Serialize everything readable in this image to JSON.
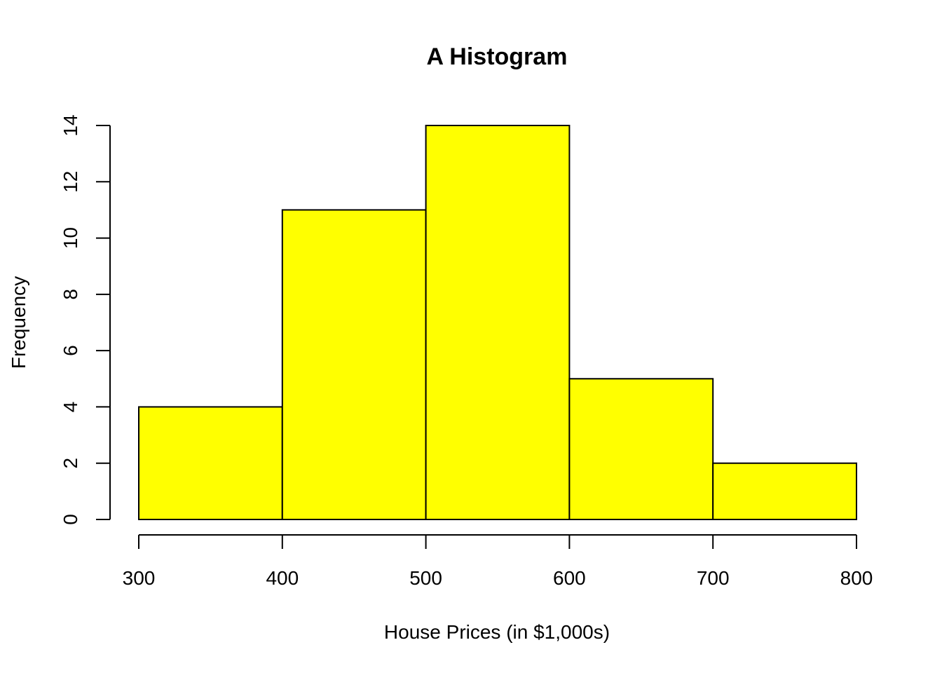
{
  "chart_data": {
    "type": "histogram",
    "title": "A Histogram",
    "xlabel": "House Prices (in $1,000s)",
    "ylabel": "Frequency",
    "bins": [
      {
        "start": 300,
        "end": 400,
        "count": 4
      },
      {
        "start": 400,
        "end": 500,
        "count": 11
      },
      {
        "start": 500,
        "end": 600,
        "count": 14
      },
      {
        "start": 600,
        "end": 700,
        "count": 5
      },
      {
        "start": 700,
        "end": 800,
        "count": 2
      }
    ],
    "xlim": [
      300,
      800
    ],
    "ylim": [
      0,
      14
    ],
    "xticks": [
      300,
      400,
      500,
      600,
      700,
      800
    ],
    "yticks": [
      0,
      2,
      4,
      6,
      8,
      10,
      12,
      14
    ],
    "bar_color": "#FFFF00",
    "edge_color": "#000000",
    "grid": false,
    "legend": "none"
  }
}
